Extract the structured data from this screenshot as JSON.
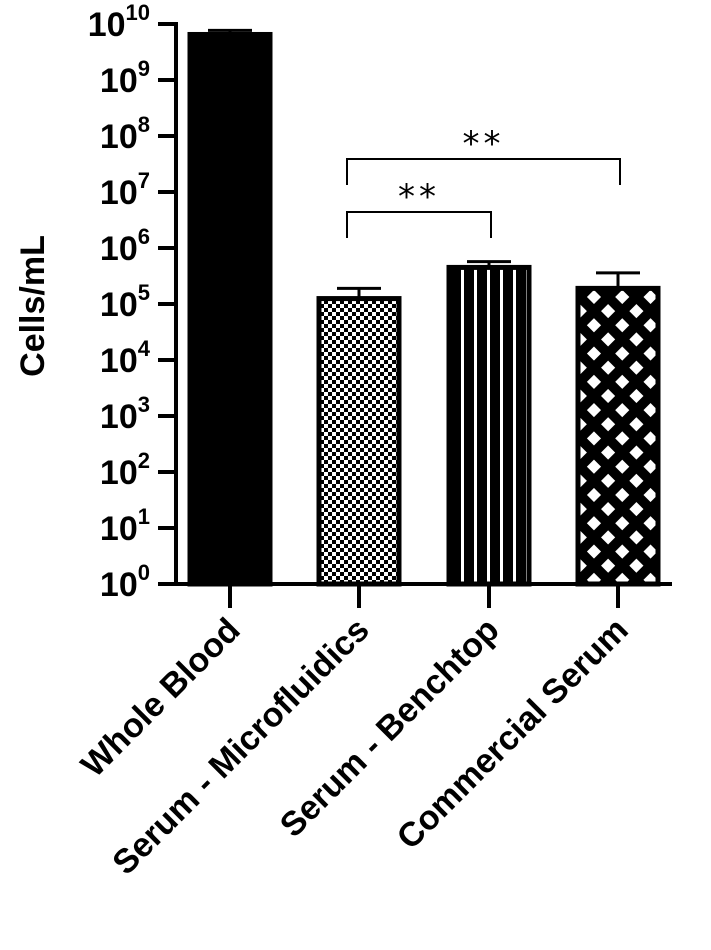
{
  "chart_data": {
    "type": "bar",
    "title": "",
    "ylabel": "Cells/mL",
    "xlabel": "",
    "yscale": "log10",
    "ylim": [
      1,
      10000000000
    ],
    "ytick_base": "10",
    "ytick_exponents": [
      "0",
      "1",
      "2",
      "3",
      "4",
      "5",
      "6",
      "7",
      "8",
      "9",
      "10"
    ],
    "categories": [
      "Whole Blood",
      "Serum - Microfluidics",
      "Serum - Benchtop",
      "Commercial Serum"
    ],
    "values": [
      6500000000,
      125000,
      450000,
      190000
    ],
    "error_upper": [
      7700000000,
      190000,
      570000,
      360000
    ],
    "patterns": [
      "solid-black",
      "checkerboard",
      "vertical-stripes",
      "diamond-lattice"
    ],
    "grid": false,
    "legend": "none",
    "significance": [
      {
        "from": "Serum - Microfluidics",
        "to": "Serum - Benchtop",
        "label": "**"
      },
      {
        "from": "Serum - Microfluidics",
        "to": "Commercial Serum",
        "label": "**"
      }
    ],
    "colors": {
      "bar": "#000000",
      "fill": "#ffffff"
    }
  }
}
